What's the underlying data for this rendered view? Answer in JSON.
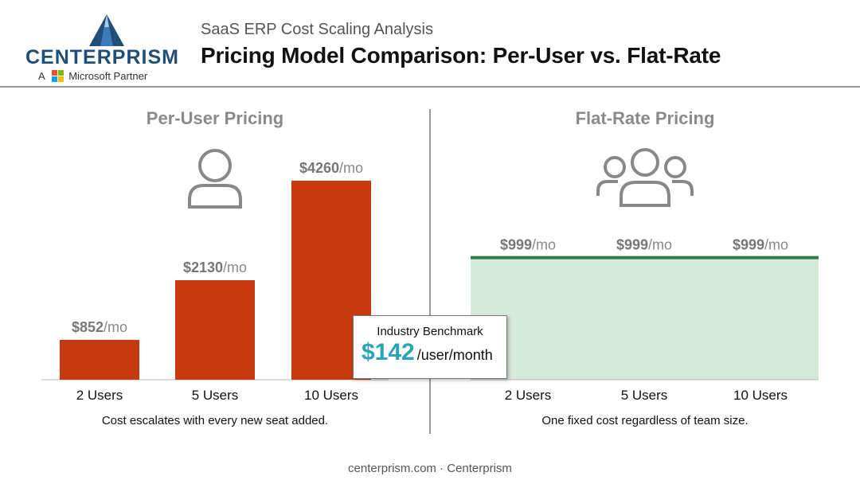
{
  "header": {
    "logo_name": "CENTERPRISM",
    "partner_prefix": "A",
    "partner_name": "Microsoft Partner",
    "subtitle": "SaaS ERP Cost Scaling Analysis",
    "title": "Pricing Model Comparison: Per-User vs. Flat-Rate"
  },
  "icons": {
    "per_user": "single-user-icon",
    "flat_rate": "user-group-icon",
    "logo": "mountain-peak-icon",
    "partner": "microsoft-logo-icon"
  },
  "colors": {
    "per_user_bar": "#c73a0e",
    "flat_fill": "#d6eadc",
    "flat_line": "#2e7d4a",
    "benchmark": "#2aa4b8"
  },
  "chart_data": [
    {
      "type": "bar",
      "title": "Per-User Pricing",
      "categories": [
        "2 Users",
        "5 Users",
        "10 Users"
      ],
      "values": [
        852,
        2130,
        4260
      ],
      "value_prefix": "$",
      "value_suffix": "/mo",
      "ylim": [
        0,
        4600
      ],
      "grid": false,
      "caption": "Cost escalates with every new seat added."
    },
    {
      "type": "area",
      "title": "Flat-Rate Pricing",
      "categories": [
        "2 Users",
        "5 Users",
        "10 Users"
      ],
      "values": [
        999,
        999,
        999
      ],
      "value_prefix": "$",
      "value_suffix": "/mo",
      "ylim": [
        0,
        4600
      ],
      "grid": false,
      "caption": "One fixed cost regardless of team size."
    }
  ],
  "benchmark": {
    "label": "Industry Benchmark",
    "value": "$142",
    "unit": "/user/month"
  },
  "footer": "centerprism.com · Centerprism"
}
